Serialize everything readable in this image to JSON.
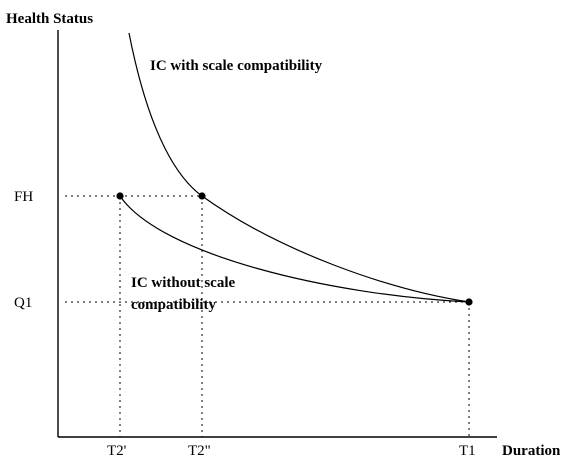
{
  "diagram": {
    "y_axis_title": "Health Status",
    "x_axis_title": "Duration",
    "y_ticks": {
      "fh": "FH",
      "q1": "Q1"
    },
    "x_ticks": {
      "t2_prime": "T2'",
      "t2_double_prime": "T2\"",
      "t1": "T1"
    },
    "curve_with_label": "IC with scale compatibility",
    "curve_without_label_line1": "IC without scale",
    "curve_without_label_line2": "compatibility"
  }
}
